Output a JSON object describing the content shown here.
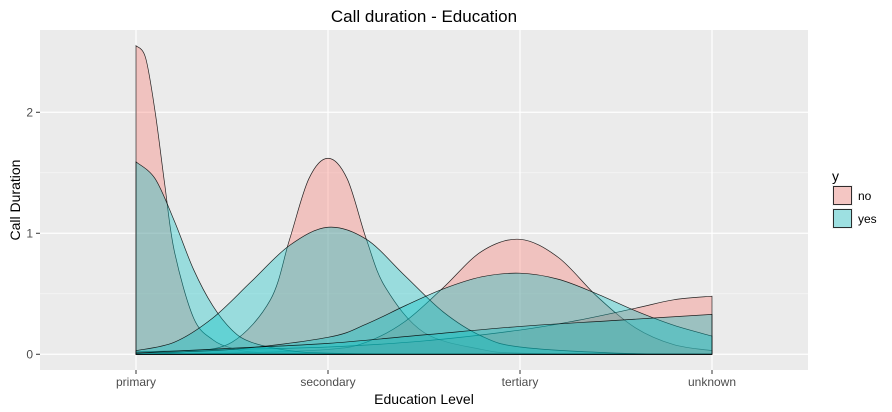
{
  "chart_data": {
    "type": "area",
    "title": "Call duration - Education",
    "xlabel": "Education Level",
    "ylabel": "Call Duration",
    "categories": [
      "primary",
      "secondary",
      "tertiary",
      "unknown"
    ],
    "x_range": [
      0.5,
      4.5
    ],
    "ylim": [
      -0.13,
      2.68
    ],
    "y_ticks": [
      0,
      1,
      2
    ],
    "grid": true,
    "legend": {
      "title": "y",
      "position": "right",
      "entries": [
        {
          "label": "no",
          "color": "#F8766D"
        },
        {
          "label": "yes",
          "color": "#00BFC4"
        }
      ]
    },
    "series": [
      {
        "label": "no",
        "color": "#F8766D",
        "curves": [
          {
            "category": "primary",
            "x": [
              1.0,
              1.05,
              1.1,
              1.15,
              1.2,
              1.3,
              1.4,
              1.5,
              1.6,
              1.8,
              2.0,
              2.5,
              3.0,
              4.0
            ],
            "y": [
              2.55,
              2.45,
              2.0,
              1.4,
              0.85,
              0.3,
              0.12,
              0.05,
              0.02,
              0.01,
              0.0,
              0.0,
              0.0,
              0.0
            ]
          },
          {
            "category": "secondary",
            "x": [
              1.0,
              1.25,
              1.5,
              1.7,
              1.8,
              1.9,
              2.0,
              2.1,
              2.2,
              2.3,
              2.5,
              2.8,
              3.0,
              3.5,
              4.0
            ],
            "y": [
              0.0,
              0.02,
              0.1,
              0.45,
              0.95,
              1.45,
              1.62,
              1.45,
              0.95,
              0.55,
              0.18,
              0.04,
              0.01,
              0.0,
              0.0
            ]
          },
          {
            "category": "tertiary",
            "x": [
              1.0,
              1.5,
              2.0,
              2.2,
              2.4,
              2.6,
              2.8,
              3.0,
              3.2,
              3.4,
              3.6,
              3.8,
              4.0
            ],
            "y": [
              0.0,
              0.01,
              0.04,
              0.1,
              0.27,
              0.55,
              0.85,
              0.95,
              0.8,
              0.48,
              0.22,
              0.08,
              0.03
            ]
          },
          {
            "category": "unknown",
            "x": [
              1.0,
              1.5,
              2.0,
              2.5,
              3.0,
              3.3,
              3.6,
              3.8,
              4.0
            ],
            "y": [
              0.02,
              0.04,
              0.06,
              0.11,
              0.2,
              0.28,
              0.38,
              0.45,
              0.48
            ]
          }
        ]
      },
      {
        "label": "yes",
        "color": "#00BFC4",
        "curves": [
          {
            "category": "primary",
            "x": [
              1.0,
              1.1,
              1.2,
              1.3,
              1.4,
              1.5,
              1.6,
              1.8,
              2.0,
              2.5,
              3.0,
              4.0
            ],
            "y": [
              1.59,
              1.45,
              1.1,
              0.7,
              0.4,
              0.2,
              0.1,
              0.03,
              0.01,
              0.0,
              0.0,
              0.0
            ]
          },
          {
            "category": "secondary",
            "x": [
              1.0,
              1.2,
              1.4,
              1.6,
              1.8,
              2.0,
              2.2,
              2.4,
              2.6,
              2.8,
              3.0,
              3.5,
              4.0
            ],
            "y": [
              0.03,
              0.1,
              0.3,
              0.6,
              0.9,
              1.05,
              0.95,
              0.65,
              0.35,
              0.15,
              0.06,
              0.01,
              0.0
            ]
          },
          {
            "category": "tertiary",
            "x": [
              1.0,
              1.5,
              2.0,
              2.2,
              2.4,
              2.6,
              2.8,
              3.0,
              3.2,
              3.4,
              3.6,
              3.8,
              4.0
            ],
            "y": [
              0.01,
              0.04,
              0.14,
              0.25,
              0.4,
              0.54,
              0.64,
              0.67,
              0.62,
              0.5,
              0.36,
              0.24,
              0.15
            ]
          },
          {
            "category": "unknown",
            "x": [
              1.0,
              1.5,
              2.0,
              2.5,
              3.0,
              3.5,
              4.0
            ],
            "y": [
              0.01,
              0.05,
              0.09,
              0.16,
              0.23,
              0.28,
              0.33
            ]
          }
        ]
      }
    ]
  }
}
